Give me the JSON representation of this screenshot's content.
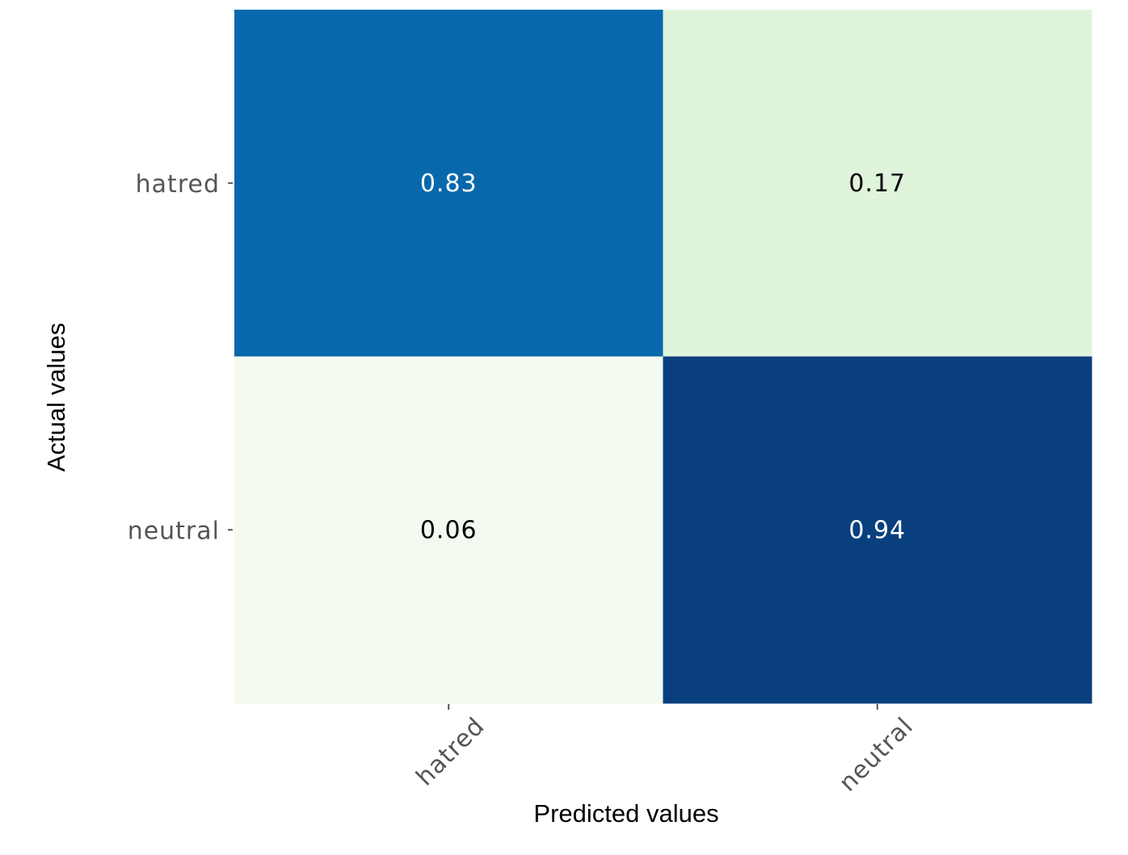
{
  "chart_data": {
    "type": "heatmap",
    "title": "",
    "xlabel": "Predicted values",
    "ylabel": "Actual values",
    "x_categories": [
      "hatred",
      "neutral"
    ],
    "y_categories": [
      "hatred",
      "neutral"
    ],
    "values": [
      [
        0.83,
        0.17
      ],
      [
        0.06,
        0.94
      ]
    ],
    "value_labels": [
      [
        "0.83",
        "0.17"
      ],
      [
        "0.06",
        "0.94"
      ]
    ],
    "colormap": "GnBu",
    "cell_colors": [
      [
        "#0868ac",
        "#e0f3db"
      ],
      [
        "#f3faf0",
        "#0a3f7f"
      ]
    ],
    "text_colors": [
      [
        "#ffffff",
        "#000000"
      ],
      [
        "#000000",
        "#ffffff"
      ]
    ],
    "colorbar": false,
    "grid": false
  }
}
